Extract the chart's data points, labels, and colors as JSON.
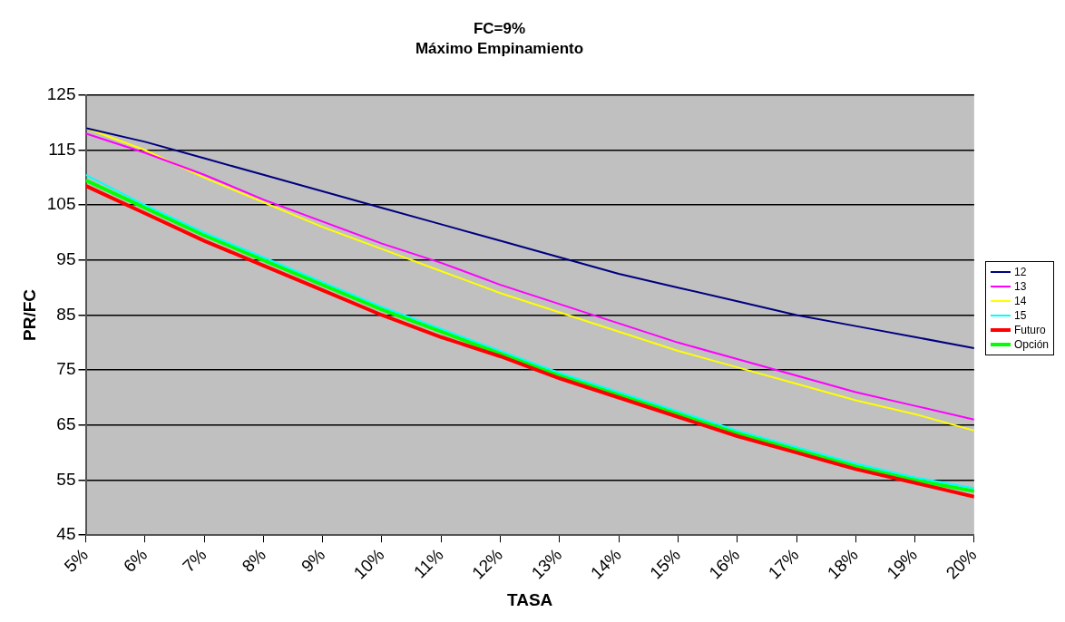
{
  "chart_data": {
    "type": "line",
    "title": "FC=9%",
    "subtitle": "Máximo Empinamiento",
    "xlabel": "TASA",
    "ylabel": "PR/FC",
    "x": [
      5,
      6,
      7,
      8,
      9,
      10,
      11,
      12,
      13,
      14,
      15,
      16,
      17,
      18,
      19,
      20
    ],
    "series": [
      {
        "name": "12",
        "color": "#000080",
        "values": [
          119,
          116.5,
          113.5,
          110.5,
          107.5,
          104.5,
          101.5,
          98.5,
          95.5,
          92.5,
          90,
          87.5,
          85,
          83,
          81,
          79
        ]
      },
      {
        "name": "13",
        "color": "#ff00ff",
        "values": [
          118,
          114.5,
          110.5,
          106,
          102,
          98,
          94.5,
          90.5,
          87,
          83.5,
          80,
          77,
          74,
          71,
          68.5,
          66
        ]
      },
      {
        "name": "14",
        "color": "#ffff00",
        "values": [
          119,
          115,
          110,
          105.5,
          101,
          97,
          93,
          89,
          85.5,
          82,
          78.5,
          75.5,
          72.5,
          69.5,
          67,
          64
        ]
      },
      {
        "name": "15",
        "color": "#00ffff",
        "values": [
          110.5,
          105,
          100,
          95.5,
          91,
          86.5,
          82.5,
          78.5,
          74.5,
          71,
          67.5,
          64,
          61,
          58,
          55.5,
          53.5
        ]
      },
      {
        "name": "Futuro",
        "color": "#ff0000",
        "values": [
          108.5,
          103.5,
          98.5,
          94,
          89.5,
          85,
          81,
          77.5,
          73.5,
          70,
          66.5,
          63,
          60,
          57,
          54.5,
          52
        ]
      },
      {
        "name": "Opción",
        "color": "#00ff00",
        "values": [
          109.5,
          104.5,
          99.5,
          95,
          90.5,
          86,
          82,
          78,
          74,
          70.5,
          67,
          63.5,
          60.5,
          57.5,
          55,
          53
        ]
      }
    ],
    "xlim": [
      5,
      20
    ],
    "xticks": [
      {
        "value": 5,
        "label": "5%"
      },
      {
        "value": 6,
        "label": "6%"
      },
      {
        "value": 7,
        "label": "7%"
      },
      {
        "value": 8,
        "label": "8%"
      },
      {
        "value": 9,
        "label": "9%"
      },
      {
        "value": 10,
        "label": "10%"
      },
      {
        "value": 11,
        "label": "11%"
      },
      {
        "value": 12,
        "label": "12%"
      },
      {
        "value": 13,
        "label": "13%"
      },
      {
        "value": 14,
        "label": "14%"
      },
      {
        "value": 15,
        "label": "15%"
      },
      {
        "value": 16,
        "label": "16%"
      },
      {
        "value": 17,
        "label": "17%"
      },
      {
        "value": 18,
        "label": "18%"
      },
      {
        "value": 19,
        "label": "19%"
      },
      {
        "value": 20,
        "label": "20%"
      }
    ],
    "ylim": [
      45,
      125
    ],
    "yticks": [
      45,
      55,
      65,
      75,
      85,
      95,
      105,
      115,
      125
    ],
    "grid": "y",
    "legend": "right",
    "marker": "none",
    "line_style": "solid"
  }
}
